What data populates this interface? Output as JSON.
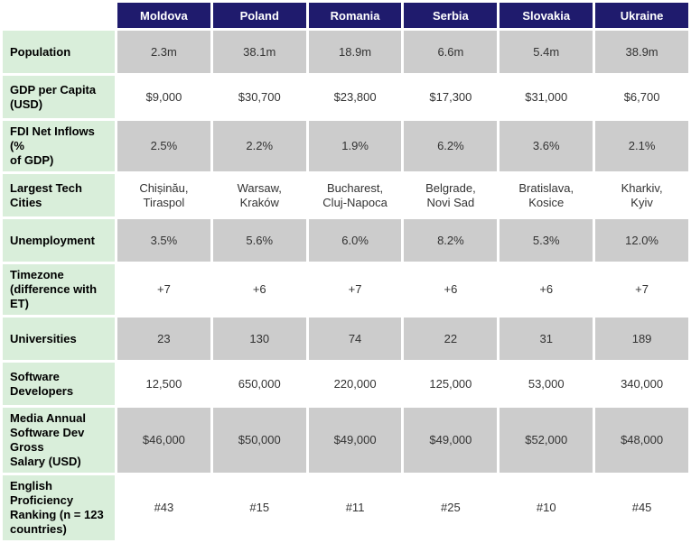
{
  "table": {
    "columns": [
      "Moldova",
      "Poland",
      "Romania",
      "Serbia",
      "Slovakia",
      "Ukraine"
    ],
    "rows": [
      {
        "label": "Population",
        "values": [
          "2.3m",
          "38.1m",
          "18.9m",
          "6.6m",
          "5.4m",
          "38.9m"
        ]
      },
      {
        "label": "GDP per Capita\n(USD)",
        "values": [
          "$9,000",
          "$30,700",
          "$23,800",
          "$17,300",
          "$31,000",
          "$6,700"
        ]
      },
      {
        "label": "FDI Net Inflows (%\nof GDP)",
        "values": [
          "2.5%",
          "2.2%",
          "1.9%",
          "6.2%",
          "3.6%",
          "2.1%"
        ]
      },
      {
        "label": "Largest Tech Cities",
        "values": [
          "Chișinău,\nTiraspol",
          "Warsaw,\nKraków",
          "Bucharest,\nCluj-Napoca",
          "Belgrade,\nNovi Sad",
          "Bratislava,\nKosice",
          "Kharkiv,\nKyiv"
        ]
      },
      {
        "label": "Unemployment",
        "values": [
          "3.5%",
          "5.6%",
          "6.0%",
          "8.2%",
          "5.3%",
          "12.0%"
        ]
      },
      {
        "label": "Timezone\n(difference with ET)",
        "values": [
          "+7",
          "+6",
          "+7",
          "+6",
          "+6",
          "+7"
        ]
      },
      {
        "label": "Universities",
        "values": [
          "23",
          "130",
          "74",
          "22",
          "31",
          "189"
        ]
      },
      {
        "label": "Software\nDevelopers",
        "values": [
          "12,500",
          "650,000",
          "220,000",
          "125,000",
          "53,000",
          "340,000"
        ]
      },
      {
        "label": "Media Annual\nSoftware Dev Gross\nSalary (USD)",
        "values": [
          "$46,000",
          "$50,000",
          "$49,000",
          "$49,000",
          "$52,000",
          "$48,000"
        ]
      },
      {
        "label": "English Proficiency\nRanking (n = 123\ncountries)",
        "values": [
          "#43",
          "#15",
          "#11",
          "#25",
          "#10",
          "#45"
        ]
      }
    ],
    "colors": {
      "header_bg": "#1F1B6D",
      "header_text": "#FFFFFF",
      "label_bg": "#D9EEDA",
      "stripe_bg": "#CCCCCC",
      "row_bg": "#FFFFFF",
      "label_text": "#000000",
      "data_text": "#333333"
    }
  }
}
